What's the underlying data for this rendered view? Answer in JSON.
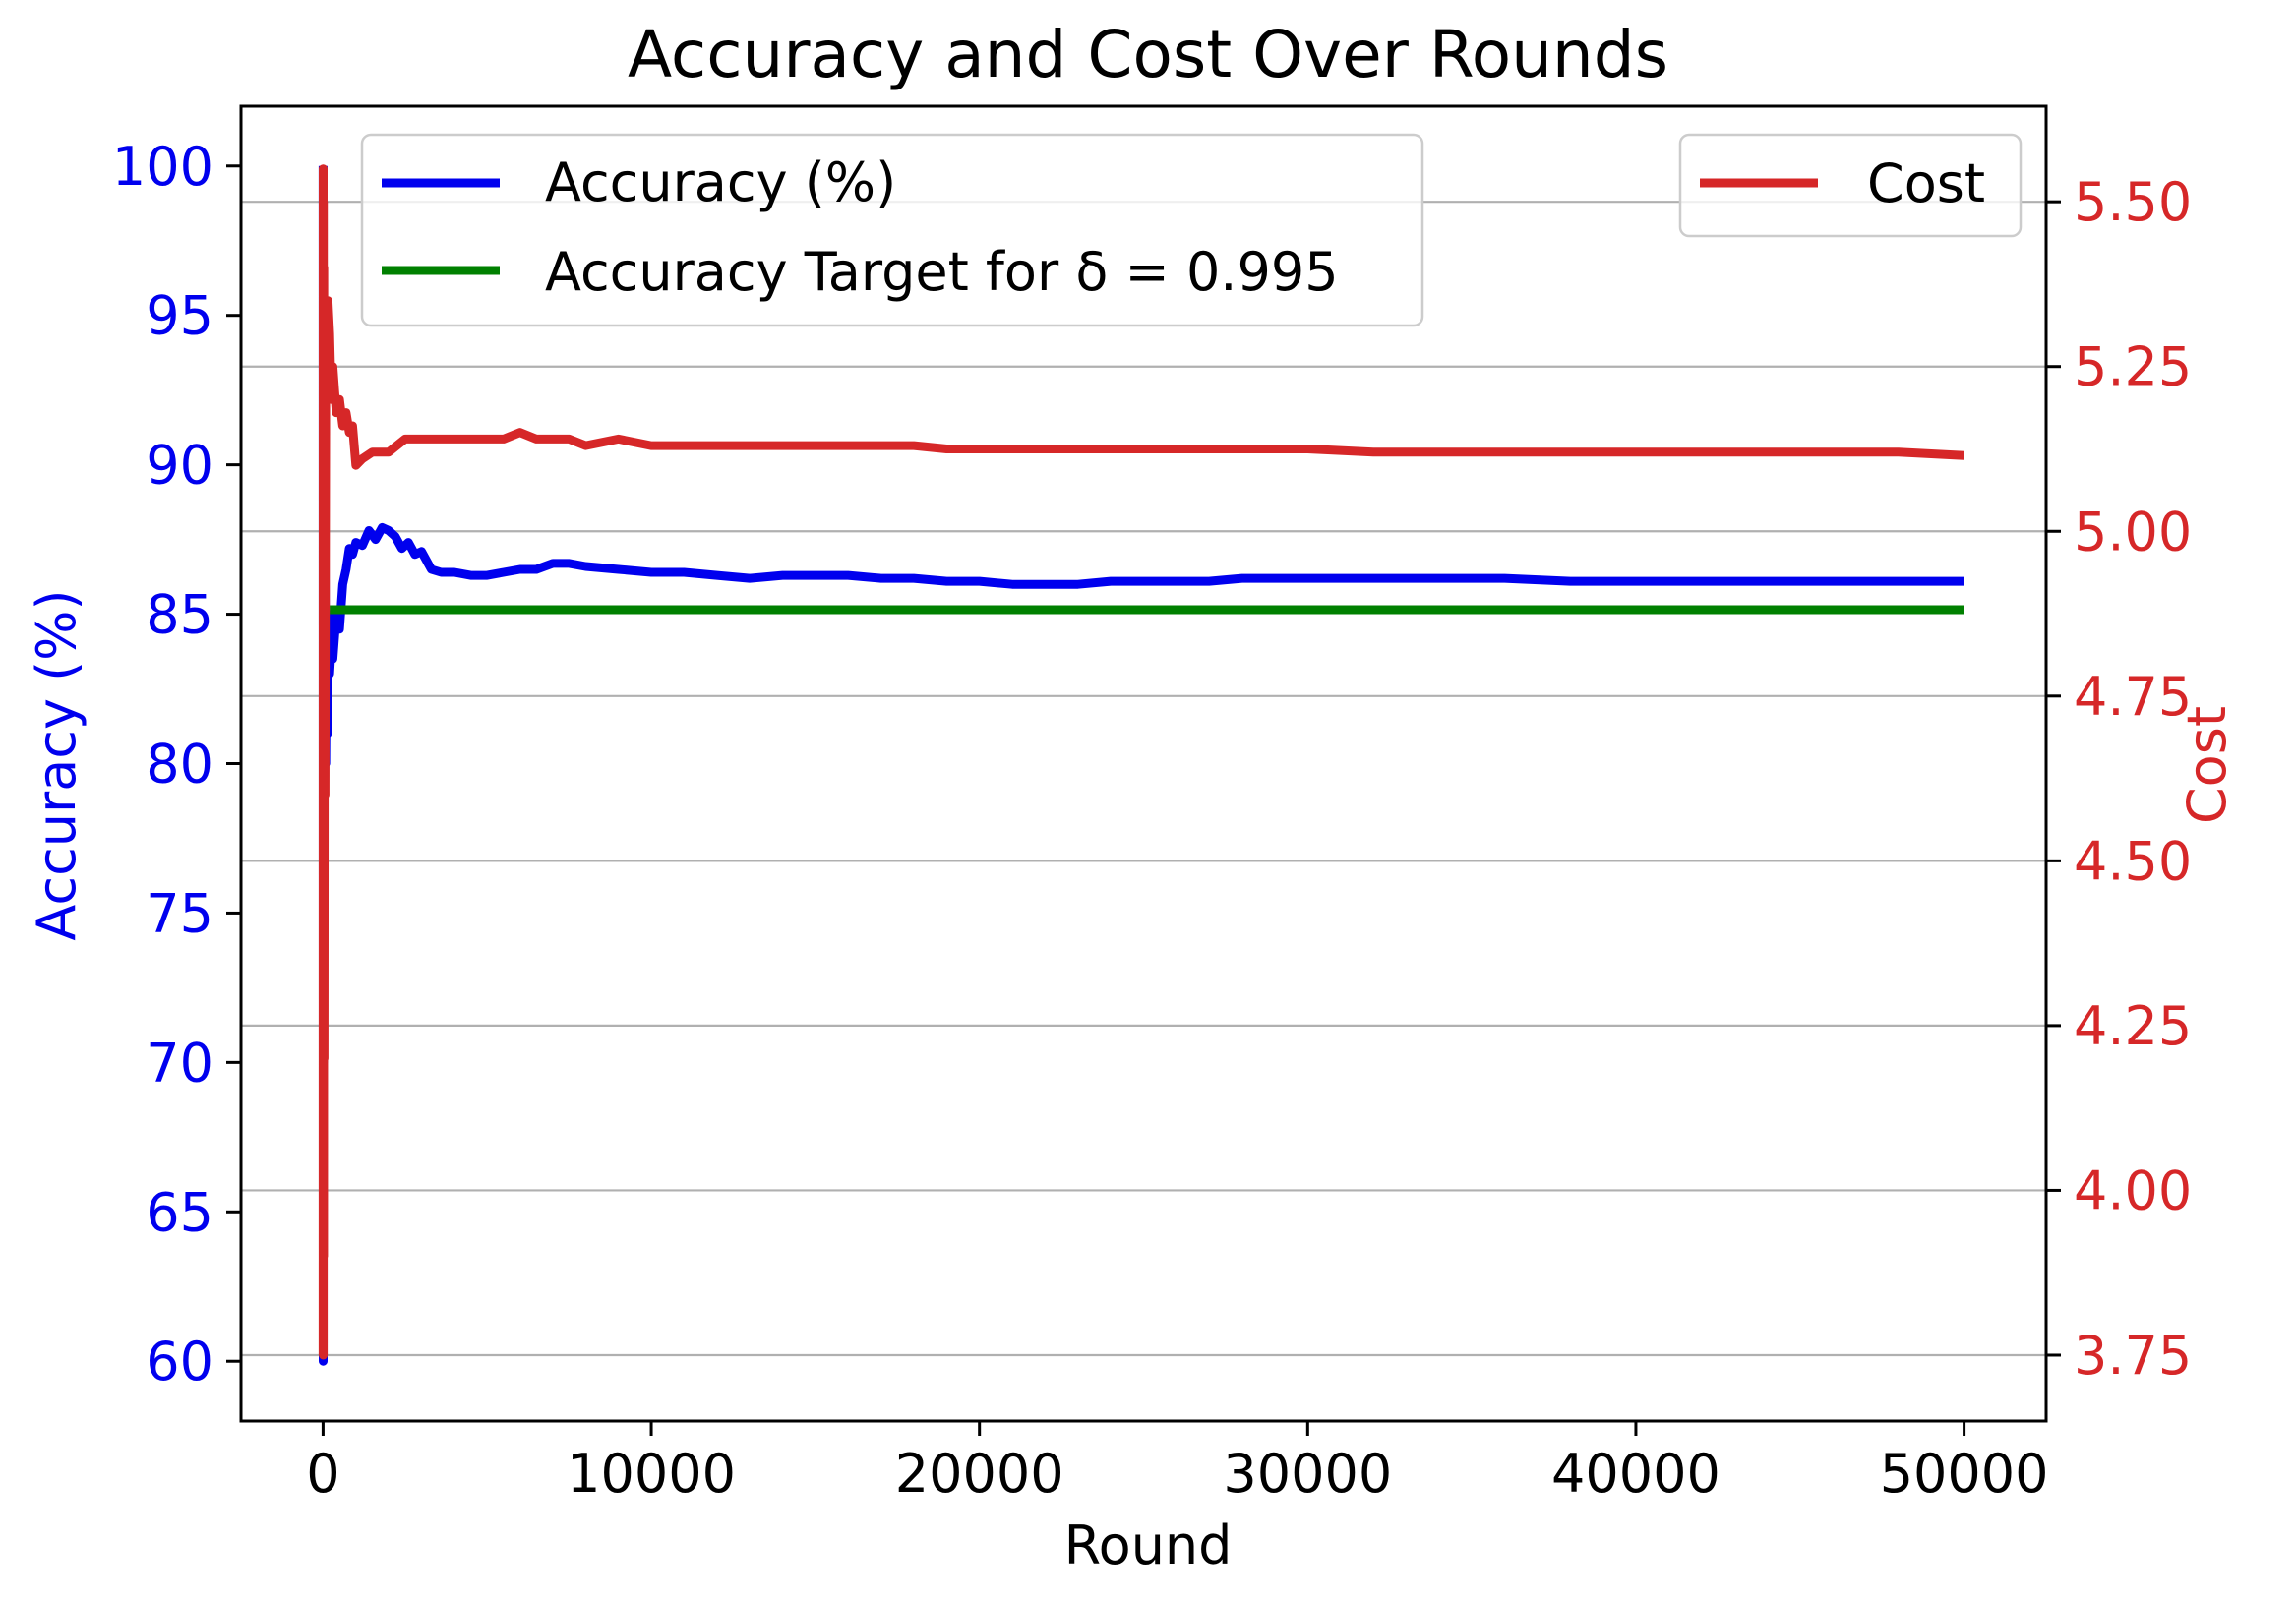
{
  "chart_data": {
    "type": "line",
    "title": "Accuracy and Cost Over Rounds",
    "xlabel": "Round",
    "ylabel_left": "Accuracy (%)",
    "ylabel_right": "Cost",
    "xlim": [
      -2500,
      52500
    ],
    "ylim_left": [
      58,
      102
    ],
    "ylim_right": [
      3.65,
      5.645
    ],
    "x_ticks": [
      0,
      10000,
      20000,
      30000,
      40000,
      50000
    ],
    "y_ticks_left": [
      60,
      65,
      70,
      75,
      80,
      85,
      90,
      95,
      100
    ],
    "y_ticks_right": [
      3.75,
      4.0,
      4.25,
      4.5,
      4.75,
      5.0,
      5.25,
      5.5
    ],
    "y_tick_labels_right": [
      "3.75",
      "4.00",
      "4.25",
      "4.50",
      "4.75",
      "5.00",
      "5.25",
      "5.50"
    ],
    "grid": "horizontal, right axis",
    "legend_left": {
      "position": "upper-left",
      "entries": [
        "Accuracy (%)",
        "Accuracy Target for δ = 0.995"
      ]
    },
    "legend_right": {
      "position": "upper-right",
      "entries": [
        "Cost"
      ]
    },
    "colors": {
      "accuracy": "#0000ee",
      "target": "#008000",
      "cost": "#d62728"
    },
    "series": [
      {
        "name": "Accuracy (%)",
        "axis": "left",
        "x": [
          1,
          3,
          6,
          10,
          15,
          20,
          30,
          45,
          60,
          80,
          100,
          130,
          160,
          200,
          250,
          300,
          400,
          500,
          600,
          700,
          800,
          900,
          1000,
          1200,
          1400,
          1600,
          1800,
          2000,
          2200,
          2400,
          2600,
          2800,
          3000,
          3300,
          3600,
          4000,
          4500,
          5000,
          5500,
          6000,
          6500,
          7000,
          7500,
          8000,
          9000,
          10000,
          11000,
          12000,
          13000,
          14000,
          15000,
          16000,
          17000,
          18000,
          19000,
          20000,
          21000,
          22000,
          23000,
          24000,
          25000,
          26000,
          27000,
          28000,
          30000,
          32000,
          34000,
          36000,
          38000,
          40000,
          42000,
          44000,
          46000,
          48000,
          50000
        ],
        "y": [
          100,
          60,
          85,
          70,
          90,
          78,
          92,
          82,
          88,
          80,
          84,
          81,
          85,
          83,
          84,
          83.5,
          85,
          84.5,
          86,
          86.5,
          87.2,
          87,
          87.4,
          87.3,
          87.8,
          87.5,
          87.9,
          87.8,
          87.6,
          87.2,
          87.4,
          87,
          87.1,
          86.5,
          86.4,
          86.4,
          86.3,
          86.3,
          86.4,
          86.5,
          86.5,
          86.7,
          86.7,
          86.6,
          86.5,
          86.4,
          86.4,
          86.3,
          86.2,
          86.3,
          86.3,
          86.3,
          86.2,
          86.2,
          86.1,
          86.1,
          86.0,
          86.0,
          86.0,
          86.1,
          86.1,
          86.1,
          86.1,
          86.2,
          86.2,
          86.2,
          86.2,
          86.2,
          86.1,
          86.1,
          86.1,
          86.1,
          86.1,
          86.1,
          86.1
        ]
      },
      {
        "name": "Accuracy Target for δ = 0.995",
        "axis": "left",
        "x": [
          200,
          50000
        ],
        "y": [
          85.15,
          85.15
        ]
      },
      {
        "name": "Cost",
        "axis": "right",
        "x": [
          1,
          3,
          6,
          10,
          15,
          20,
          30,
          45,
          60,
          80,
          100,
          120,
          150,
          200,
          250,
          300,
          400,
          500,
          600,
          700,
          800,
          900,
          1000,
          1200,
          1500,
          2000,
          2500,
          3000,
          3500,
          4000,
          4500,
          5000,
          5500,
          6000,
          6500,
          7000,
          7500,
          8000,
          9000,
          10000,
          11000,
          12000,
          13000,
          14000,
          15000,
          16000,
          17000,
          18000,
          19000,
          20000,
          22000,
          24000,
          26000,
          28000,
          30000,
          32000,
          34000,
          36000,
          38000,
          40000,
          42000,
          44000,
          46000,
          48000,
          50000
        ],
        "y": [
          3.75,
          5.55,
          3.75,
          5.5,
          3.9,
          5.4,
          4.2,
          5.3,
          4.6,
          5.25,
          5.3,
          5.2,
          5.35,
          5.3,
          5.2,
          5.25,
          5.18,
          5.2,
          5.16,
          5.18,
          5.15,
          5.16,
          5.1,
          5.11,
          5.12,
          5.12,
          5.14,
          5.14,
          5.14,
          5.14,
          5.14,
          5.14,
          5.14,
          5.15,
          5.14,
          5.14,
          5.14,
          5.13,
          5.14,
          5.13,
          5.13,
          5.13,
          5.13,
          5.13,
          5.13,
          5.13,
          5.13,
          5.13,
          5.125,
          5.125,
          5.125,
          5.125,
          5.125,
          5.125,
          5.125,
          5.12,
          5.12,
          5.12,
          5.12,
          5.12,
          5.12,
          5.12,
          5.12,
          5.12,
          5.115
        ]
      }
    ]
  }
}
